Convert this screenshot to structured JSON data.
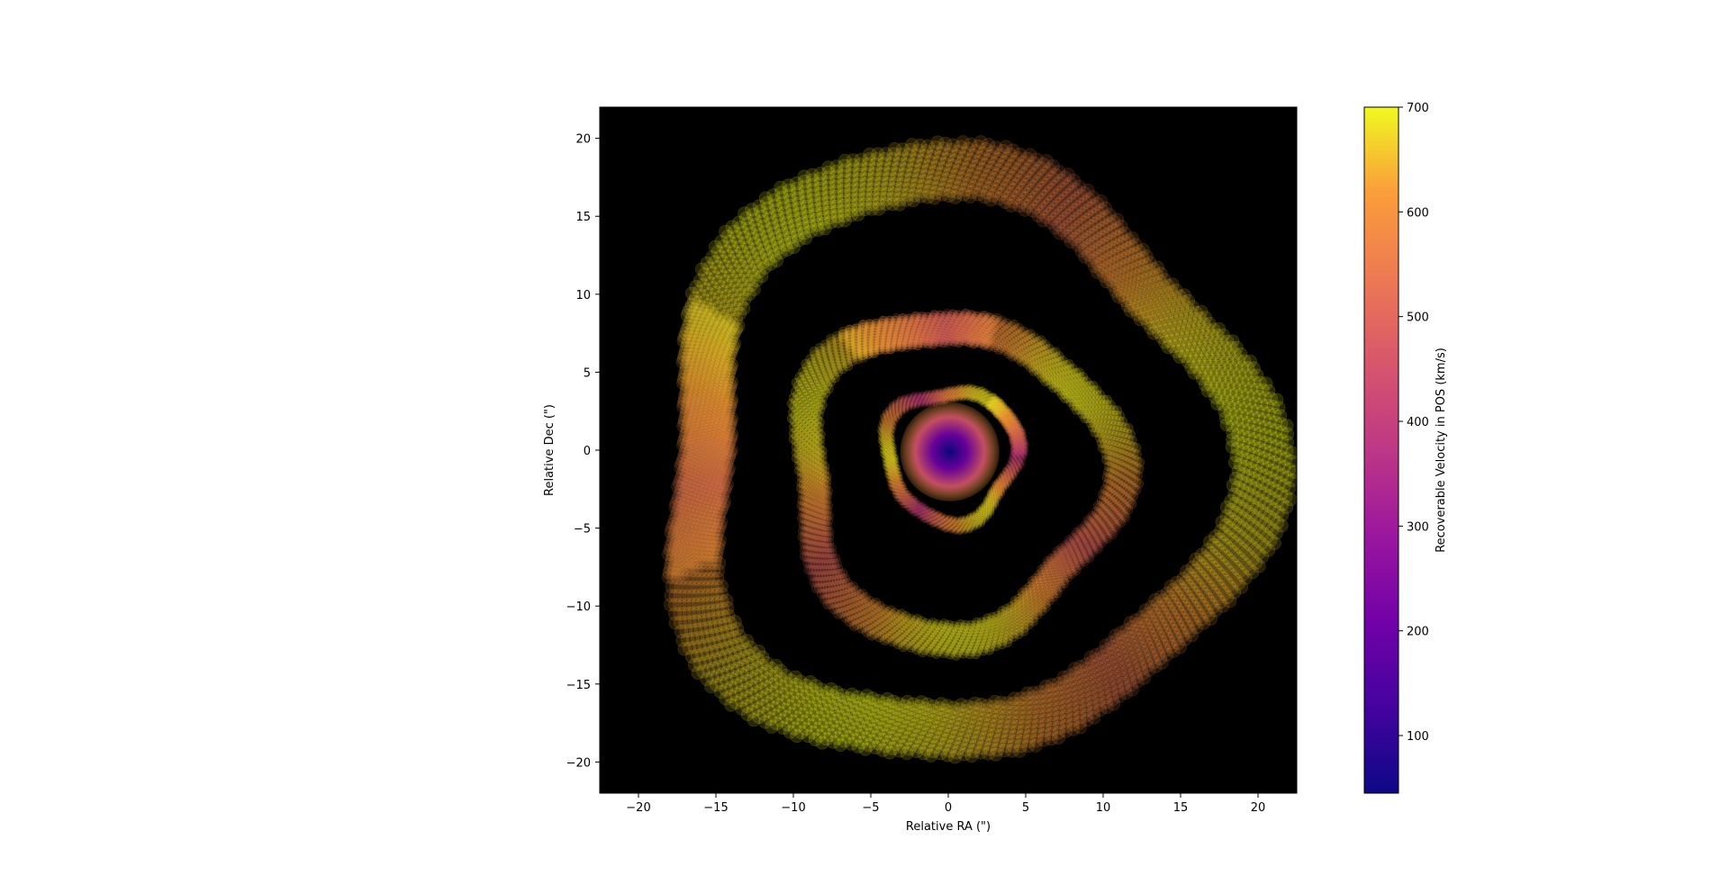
{
  "chart_data": {
    "type": "scatter",
    "title": "",
    "xlabel": "Relative RA (\")",
    "ylabel": "Relative Dec (\")",
    "xlim": [
      -22.5,
      22.5
    ],
    "ylim": [
      -22,
      22
    ],
    "xticks": [
      -20,
      -15,
      -10,
      -5,
      0,
      5,
      10,
      15,
      20
    ],
    "yticks": [
      -20,
      -15,
      -10,
      -5,
      0,
      5,
      10,
      15,
      20
    ],
    "tick_labels_x": [
      "−20",
      "−15",
      "−10",
      "−5",
      "0",
      "5",
      "10",
      "15",
      "20"
    ],
    "tick_labels_y": [
      "−20",
      "−15",
      "−10",
      "−5",
      "0",
      "5",
      "10",
      "15",
      "20"
    ],
    "background": "#000000",
    "grid": false,
    "colormap": "plasma",
    "colorbar": {
      "label": "Recoverable Velocity in POS (km/s)",
      "min": 45,
      "max": 700,
      "ticks": [
        100,
        200,
        300,
        400,
        500,
        600,
        700
      ],
      "tick_labels": [
        "100",
        "200",
        "300",
        "400",
        "500",
        "600",
        "700"
      ]
    },
    "structure": {
      "description_type": "nested spiral shells of semi-transparent markers",
      "shells": [
        {
          "center": [
            0.2,
            -0.3
          ],
          "radius": 4.6,
          "velocity_range": [
            45,
            680
          ]
        },
        {
          "center": [
            0.3,
            -1.8
          ],
          "radius": 11.0,
          "velocity_range": [
            250,
            690
          ]
        },
        {
          "center": [
            0.5,
            -0.5
          ],
          "radius": 19.8,
          "velocity_range": [
            350,
            700
          ]
        }
      ]
    }
  }
}
